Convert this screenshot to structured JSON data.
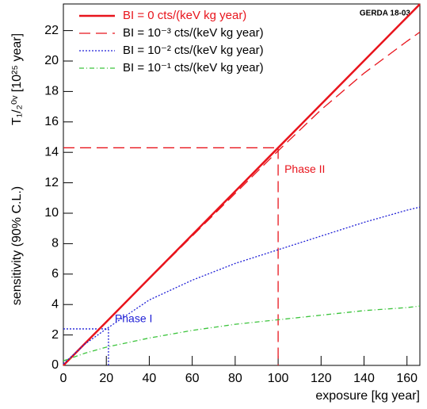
{
  "chart_data": {
    "type": "line",
    "x_label": "exposure [kg year]",
    "y_label": "sensitivity (90% C.L.)",
    "y_label_unit": "T₁/₂⁰ᵛ [10²⁵ year]",
    "tag": "GERDA 18-03",
    "x": [
      0,
      10,
      20,
      40,
      60,
      80,
      100,
      120,
      140,
      160,
      166
    ],
    "series": [
      {
        "name": "BI =  0  cts/(keV kg year)",
        "color": "#e8141c",
        "dash": "",
        "width": 2.5,
        "values": [
          0,
          1.43,
          2.86,
          5.72,
          8.58,
          11.44,
          14.3,
          17.16,
          20.02,
          22.88,
          23.74
        ]
      },
      {
        "name": "BI = 10⁻³ cts/(keV kg year)",
        "color": "#e8141c",
        "dash": "14 7",
        "width": 1.3,
        "values": [
          0,
          1.42,
          2.85,
          5.7,
          8.5,
          11.3,
          14.1,
          16.8,
          19.2,
          21.3,
          21.9
        ]
      },
      {
        "name": "BI = 10⁻² cts/(keV kg year)",
        "color": "#1f1fd6",
        "dash": "2 2",
        "width": 1.3,
        "values": [
          0.1,
          1.4,
          2.4,
          4.3,
          5.6,
          6.7,
          7.6,
          8.5,
          9.4,
          10.2,
          10.4
        ]
      },
      {
        "name": "BI = 10⁻¹ cts/(keV kg year)",
        "color": "#3cc43c",
        "dash": "6 3 1 3",
        "width": 1.3,
        "values": [
          0.3,
          0.8,
          1.2,
          1.8,
          2.3,
          2.7,
          3.0,
          3.3,
          3.6,
          3.8,
          3.9
        ]
      }
    ],
    "annotations": [
      {
        "text": "Phase II",
        "x": 100,
        "y": 14.3,
        "color": "#e8141c",
        "dash": "14 7"
      },
      {
        "text": "Phase I",
        "x": 21,
        "y": 2.4,
        "color": "#1f1fd6",
        "dash": "2 2"
      }
    ],
    "xlim": [
      0,
      166
    ],
    "ylim": [
      0,
      23.75
    ],
    "xticks": [
      0,
      20,
      40,
      60,
      80,
      100,
      120,
      140,
      160
    ],
    "yticks": [
      0,
      2,
      4,
      6,
      8,
      10,
      12,
      14,
      16,
      18,
      20,
      22
    ]
  }
}
